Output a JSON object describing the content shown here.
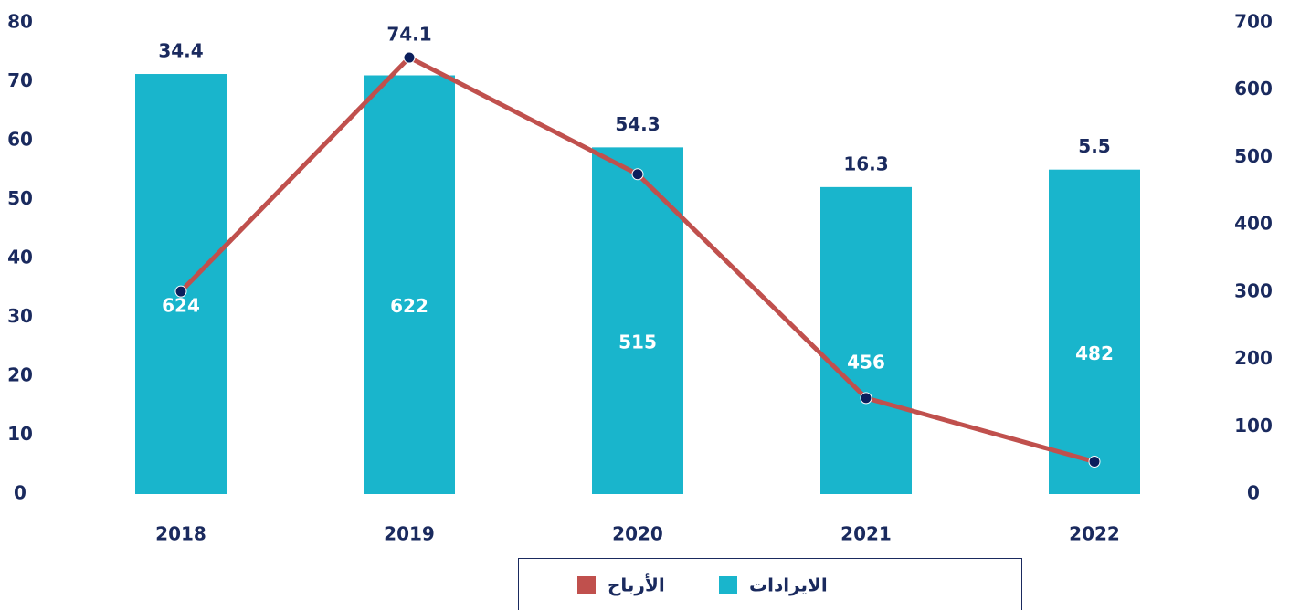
{
  "chart_data": {
    "type": "bar",
    "categories": [
      "2018",
      "2019",
      "2020",
      "2021",
      "2022"
    ],
    "series": [
      {
        "name": "الايرادات",
        "type": "bar",
        "axis": "y2",
        "color": "#19b5cc",
        "values": [
          624,
          622,
          515,
          456,
          482
        ]
      },
      {
        "name": "الأرباح",
        "type": "line",
        "axis": "y",
        "color": "#c0504d",
        "marker_color": "#0b1f5c",
        "values": [
          34.4,
          74.1,
          54.3,
          16.3,
          5.5
        ]
      }
    ],
    "ylim": [
      0,
      80
    ],
    "yticks": [
      0,
      10,
      20,
      30,
      40,
      50,
      60,
      70,
      80
    ],
    "y2lim": [
      0,
      700
    ],
    "y2ticks": [
      0,
      100,
      200,
      300,
      400,
      500,
      600,
      700
    ],
    "grid": false,
    "legend": "bottom"
  }
}
